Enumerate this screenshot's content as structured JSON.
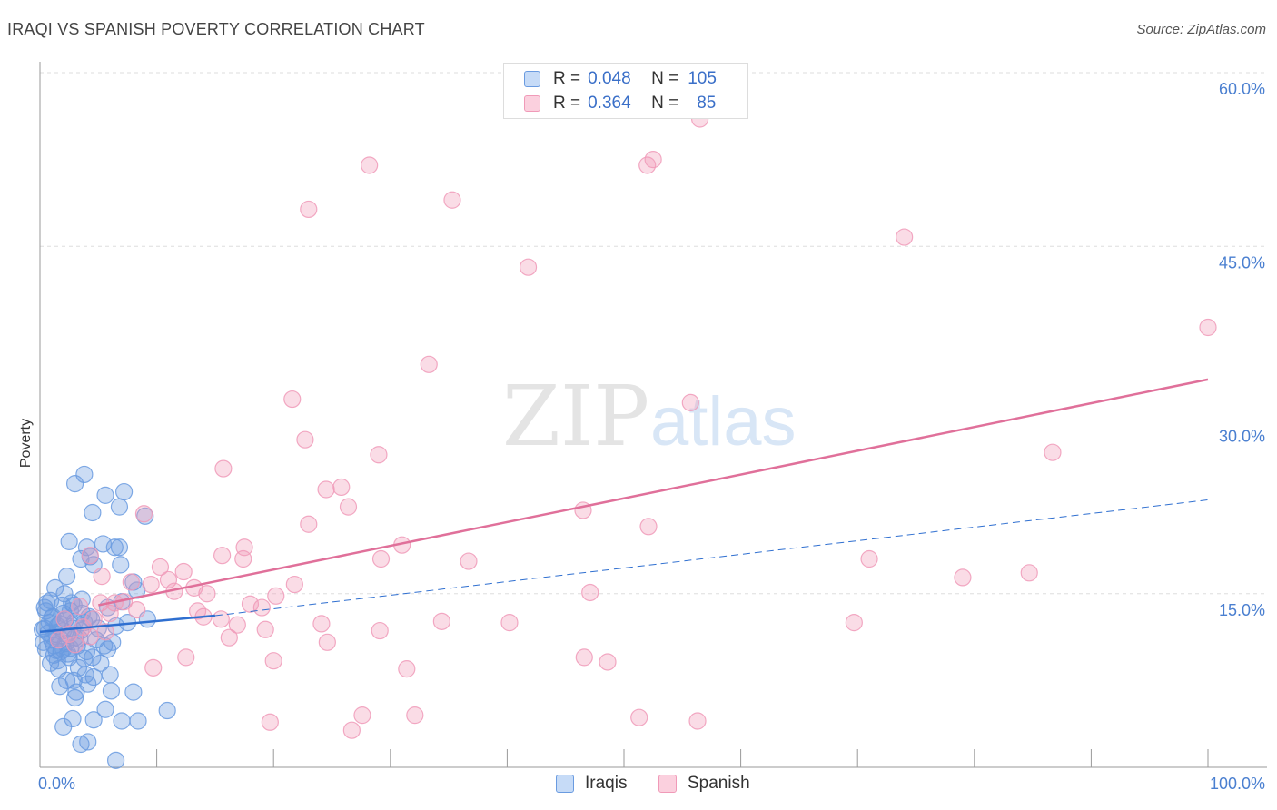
{
  "title": "IRAQI VS SPANISH POVERTY CORRELATION CHART",
  "source": "Source: ZipAtlas.com",
  "watermark": {
    "zip": "ZIP",
    "atlas": "atlas"
  },
  "colors": {
    "iraqis": "#6a9be0",
    "spanish": "#f09ab8",
    "iraqis_line": "#2f6fd0",
    "spanish_line": "#e0709a",
    "tick_text": "#4a7fd0"
  },
  "legend": {
    "rows": [
      {
        "r_label": "R =",
        "r_value": "0.048",
        "n_label": "N =",
        "n_value": "105"
      },
      {
        "r_label": "R =",
        "r_value": "0.364",
        "n_label": "N =",
        "n_value": "85"
      }
    ]
  },
  "bottom_legend": {
    "iraqis": "Iraqis",
    "spanish": "Spanish"
  },
  "chart_data": {
    "type": "scatter",
    "title": "IRAQI VS SPANISH POVERTY CORRELATION CHART",
    "xlabel": "",
    "ylabel": "Poverty",
    "xlim": [
      0,
      100
    ],
    "ylim": [
      0,
      60
    ],
    "x_tick_labels": [
      "0.0%",
      "100.0%"
    ],
    "y_ticks": [
      15,
      30,
      45,
      60
    ],
    "y_tick_labels": [
      "15.0%",
      "30.0%",
      "45.0%",
      "60.0%"
    ],
    "grid": true,
    "legend_position": "top-center",
    "series": [
      {
        "name": "Iraqis",
        "r": 0.048,
        "n": 105,
        "trend_solid": {
          "x": [
            0,
            15
          ],
          "y": [
            11.7,
            13.1
          ]
        },
        "trend_dashed": {
          "x": [
            15,
            100
          ],
          "y": [
            13.1,
            23.1
          ]
        },
        "points": [
          [
            0.5,
            13.5
          ],
          [
            0.8,
            12.5
          ],
          [
            1.0,
            11.0
          ],
          [
            1.2,
            10.5
          ],
          [
            0.4,
            12.0
          ],
          [
            1.5,
            12.2
          ],
          [
            2.0,
            11.8
          ],
          [
            1.8,
            10.0
          ],
          [
            2.5,
            9.5
          ],
          [
            0.6,
            14.2
          ],
          [
            1.1,
            13.0
          ],
          [
            1.4,
            11.5
          ],
          [
            2.2,
            12.8
          ],
          [
            2.8,
            12.0
          ],
          [
            3.0,
            11.2
          ],
          [
            0.3,
            10.8
          ],
          [
            0.9,
            9.0
          ],
          [
            1.6,
            8.5
          ],
          [
            2.4,
            9.8
          ],
          [
            3.2,
            10.5
          ],
          [
            3.5,
            11.8
          ],
          [
            2.6,
            13.5
          ],
          [
            1.9,
            14.0
          ],
          [
            3.8,
            12.5
          ],
          [
            2.1,
            15.0
          ],
          [
            1.3,
            15.5
          ],
          [
            4.0,
            10.0
          ],
          [
            4.5,
            9.5
          ],
          [
            3.9,
            8.0
          ],
          [
            2.9,
            7.5
          ],
          [
            1.7,
            7.0
          ],
          [
            4.2,
            13.0
          ],
          [
            3.6,
            14.5
          ],
          [
            2.3,
            16.5
          ],
          [
            2.7,
            14.2
          ],
          [
            4.8,
            11.0
          ],
          [
            0.7,
            11.6
          ],
          [
            1.0,
            12.9
          ],
          [
            1.2,
            9.7
          ],
          [
            2.0,
            10.2
          ],
          [
            2.4,
            11.4
          ],
          [
            3.0,
            12.6
          ],
          [
            0.4,
            13.8
          ],
          [
            0.2,
            11.9
          ],
          [
            5.0,
            12.0
          ],
          [
            5.5,
            10.5
          ],
          [
            5.2,
            9.0
          ],
          [
            4.6,
            7.8
          ],
          [
            6.0,
            8.0
          ],
          [
            5.8,
            10.2
          ],
          [
            6.2,
            10.8
          ],
          [
            3.3,
            8.6
          ],
          [
            3.1,
            6.5
          ],
          [
            4.1,
            7.2
          ],
          [
            2.5,
            19.5
          ],
          [
            4.0,
            19.0
          ],
          [
            3.5,
            18.0
          ],
          [
            4.3,
            18.2
          ],
          [
            4.6,
            17.5
          ],
          [
            5.4,
            19.3
          ],
          [
            6.4,
            19.0
          ],
          [
            6.8,
            19.0
          ],
          [
            6.9,
            17.5
          ],
          [
            7.0,
            14.3
          ],
          [
            7.2,
            23.8
          ],
          [
            6.8,
            22.5
          ],
          [
            5.6,
            23.5
          ],
          [
            4.5,
            22.0
          ],
          [
            3.0,
            24.5
          ],
          [
            3.8,
            25.3
          ],
          [
            8.0,
            16.0
          ],
          [
            8.3,
            15.3
          ],
          [
            9.0,
            21.7
          ],
          [
            9.2,
            12.8
          ],
          [
            5.8,
            13.8
          ],
          [
            6.5,
            12.2
          ],
          [
            7.5,
            12.5
          ],
          [
            2.8,
            4.2
          ],
          [
            2.0,
            3.5
          ],
          [
            4.6,
            4.1
          ],
          [
            5.6,
            5.0
          ],
          [
            7.0,
            4.0
          ],
          [
            8.0,
            6.5
          ],
          [
            8.4,
            4.0
          ],
          [
            3.5,
            2.0
          ],
          [
            4.1,
            2.2
          ],
          [
            6.5,
            0.6
          ],
          [
            10.9,
            4.9
          ],
          [
            2.3,
            7.5
          ],
          [
            3.0,
            6.0
          ],
          [
            1.4,
            10.1
          ],
          [
            2.0,
            13.3
          ],
          [
            2.6,
            10.3
          ],
          [
            3.4,
            11.1
          ],
          [
            1.7,
            12.4
          ],
          [
            2.9,
            14.0
          ],
          [
            0.9,
            14.4
          ],
          [
            1.5,
            9.2
          ],
          [
            3.8,
            9.4
          ],
          [
            4.4,
            12.8
          ],
          [
            0.5,
            10.2
          ],
          [
            1.1,
            11.3
          ],
          [
            2.2,
            10.7
          ],
          [
            3.6,
            13.3
          ],
          [
            6.1,
            6.6
          ]
        ]
      },
      {
        "name": "Spanish",
        "r": 0.364,
        "n": 85,
        "trend": {
          "x": [
            5,
            100
          ],
          "y": [
            14.0,
            33.5
          ]
        },
        "points": [
          [
            56.5,
            56.0
          ],
          [
            52.5,
            52.5
          ],
          [
            52.0,
            52.0
          ],
          [
            28.2,
            52.0
          ],
          [
            35.3,
            49.0
          ],
          [
            23.0,
            48.2
          ],
          [
            74.0,
            45.8
          ],
          [
            41.8,
            43.2
          ],
          [
            100,
            38.0
          ],
          [
            33.3,
            34.8
          ],
          [
            21.6,
            31.8
          ],
          [
            55.7,
            31.5
          ],
          [
            22.7,
            28.3
          ],
          [
            29.0,
            27.0
          ],
          [
            86.7,
            27.2
          ],
          [
            15.7,
            25.8
          ],
          [
            24.5,
            24.0
          ],
          [
            25.8,
            24.2
          ],
          [
            26.4,
            22.5
          ],
          [
            8.9,
            21.9
          ],
          [
            46.5,
            22.2
          ],
          [
            52.1,
            20.8
          ],
          [
            23.0,
            21.0
          ],
          [
            31.0,
            19.2
          ],
          [
            17.5,
            19.0
          ],
          [
            17.4,
            18.0
          ],
          [
            15.6,
            18.3
          ],
          [
            29.2,
            18.0
          ],
          [
            36.7,
            17.8
          ],
          [
            71.0,
            18.0
          ],
          [
            4.3,
            18.3
          ],
          [
            10.3,
            17.3
          ],
          [
            11.0,
            16.2
          ],
          [
            12.3,
            16.9
          ],
          [
            21.8,
            15.8
          ],
          [
            7.8,
            16.0
          ],
          [
            9.5,
            15.8
          ],
          [
            11.5,
            15.2
          ],
          [
            13.2,
            15.5
          ],
          [
            14.3,
            15.0
          ],
          [
            20.2,
            14.8
          ],
          [
            5.2,
            14.2
          ],
          [
            6.4,
            14.2
          ],
          [
            7.2,
            14.3
          ],
          [
            8.3,
            13.6
          ],
          [
            14.0,
            13.0
          ],
          [
            15.5,
            12.8
          ],
          [
            19.0,
            13.8
          ],
          [
            18.0,
            14.1
          ],
          [
            4.6,
            12.8
          ],
          [
            5.6,
            11.7
          ],
          [
            16.2,
            11.2
          ],
          [
            19.3,
            11.9
          ],
          [
            24.1,
            12.4
          ],
          [
            29.1,
            11.8
          ],
          [
            34.4,
            12.6
          ],
          [
            40.2,
            12.5
          ],
          [
            69.7,
            12.5
          ],
          [
            79.0,
            16.4
          ],
          [
            84.7,
            16.8
          ],
          [
            47.1,
            15.1
          ],
          [
            12.5,
            9.5
          ],
          [
            20.0,
            9.2
          ],
          [
            24.6,
            10.8
          ],
          [
            31.4,
            8.5
          ],
          [
            46.6,
            9.5
          ],
          [
            48.6,
            9.1
          ],
          [
            9.7,
            8.6
          ],
          [
            19.7,
            3.9
          ],
          [
            26.7,
            3.2
          ],
          [
            27.6,
            4.5
          ],
          [
            32.1,
            4.5
          ],
          [
            51.3,
            4.3
          ],
          [
            56.3,
            4.0
          ],
          [
            2.5,
            11.5
          ],
          [
            3.7,
            12.1
          ],
          [
            1.6,
            11.0
          ],
          [
            3.0,
            10.6
          ],
          [
            4.3,
            11.3
          ],
          [
            6.0,
            13.3
          ],
          [
            2.1,
            12.8
          ],
          [
            3.4,
            13.9
          ],
          [
            5.3,
            16.5
          ],
          [
            13.5,
            13.5
          ],
          [
            16.9,
            12.3
          ]
        ]
      }
    ]
  }
}
